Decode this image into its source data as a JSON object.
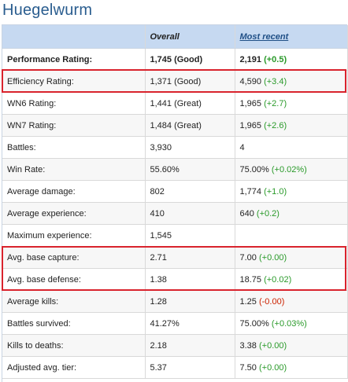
{
  "page": {
    "title": "Huegelwurm"
  },
  "table": {
    "headers": {
      "stat": "",
      "overall": "Overall",
      "recent": "Most recent"
    },
    "rows": [
      {
        "label": "Performance Rating:",
        "overall": "1,745 (Good)",
        "recent": "2,191",
        "delta": "(+0.5)",
        "delta_sign": "pos"
      },
      {
        "label": "Efficiency Rating:",
        "overall": "1,371 (Good)",
        "recent": "4,590",
        "delta": "(+3.4)",
        "delta_sign": "pos"
      },
      {
        "label": "WN6 Rating:",
        "overall": "1,441 (Great)",
        "recent": "1,965",
        "delta": "(+2.7)",
        "delta_sign": "pos"
      },
      {
        "label": "WN7 Rating:",
        "overall": "1,484 (Great)",
        "recent": "1,965",
        "delta": "(+2.6)",
        "delta_sign": "pos"
      },
      {
        "label": "Battles:",
        "overall": "3,930",
        "recent": "4",
        "delta": "",
        "delta_sign": ""
      },
      {
        "label": "Win Rate:",
        "overall": "55.60%",
        "recent": "75.00%",
        "delta": "(+0.02%)",
        "delta_sign": "pos"
      },
      {
        "label": "Average damage:",
        "overall": "802",
        "recent": "1,774",
        "delta": "(+1.0)",
        "delta_sign": "pos"
      },
      {
        "label": "Average experience:",
        "overall": "410",
        "recent": "640",
        "delta": "(+0.2)",
        "delta_sign": "pos"
      },
      {
        "label": "Maximum experience:",
        "overall": "1,545",
        "recent": "",
        "delta": "",
        "delta_sign": ""
      },
      {
        "label": "Avg. base capture:",
        "overall": "2.71",
        "recent": "7.00",
        "delta": "(+0.00)",
        "delta_sign": "pos"
      },
      {
        "label": "Avg. base defense:",
        "overall": "1.38",
        "recent": "18.75",
        "delta": "(+0.02)",
        "delta_sign": "pos"
      },
      {
        "label": "Average kills:",
        "overall": "1.28",
        "recent": "1.25",
        "delta": "(-0.00)",
        "delta_sign": "neg"
      },
      {
        "label": "Battles survived:",
        "overall": "41.27%",
        "recent": "75.00%",
        "delta": "(+0.03%)",
        "delta_sign": "pos"
      },
      {
        "label": "Kills to deaths:",
        "overall": "2.18",
        "recent": "3.38",
        "delta": "(+0.00)",
        "delta_sign": "pos"
      },
      {
        "label": "Adjusted avg. tier:",
        "overall": "5.37",
        "recent": "7.50",
        "delta": "(+0.00)",
        "delta_sign": "pos"
      }
    ]
  },
  "colors": {
    "highlight": "#d9232d",
    "positive": "#2a9a2a",
    "negative": "#cc2200",
    "header_bg": "#c6d9f1"
  }
}
